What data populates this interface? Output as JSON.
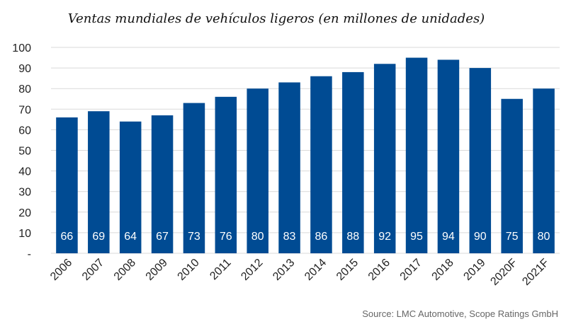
{
  "chart_data": {
    "type": "bar",
    "title": "Ventas mundiales de vehículos ligeros (en millones de unidades)",
    "categories": [
      "2006",
      "2007",
      "2008",
      "2009",
      "2010",
      "2011",
      "2012",
      "2013",
      "2014",
      "2015",
      "2016",
      "2017",
      "2018",
      "2019",
      "2020F",
      "2021F"
    ],
    "values": [
      66,
      69,
      64,
      67,
      73,
      76,
      80,
      83,
      86,
      88,
      92,
      95,
      94,
      90,
      75,
      80
    ],
    "data_labels": [
      "66",
      "69",
      "64",
      "67",
      "73",
      "76",
      "80",
      "83",
      "86",
      "88",
      "92",
      "95",
      "94",
      "90",
      "75",
      "80"
    ],
    "y_ticks": [
      "-",
      "10",
      "20",
      "30",
      "40",
      "50",
      "60",
      "70",
      "80",
      "90",
      "100"
    ],
    "ylim": [
      0,
      100
    ],
    "grid": true,
    "bar_color": "#004b93",
    "xlabel": "",
    "ylabel": ""
  },
  "source": "Source: LMC Automotive, Scope Ratings GmbH"
}
